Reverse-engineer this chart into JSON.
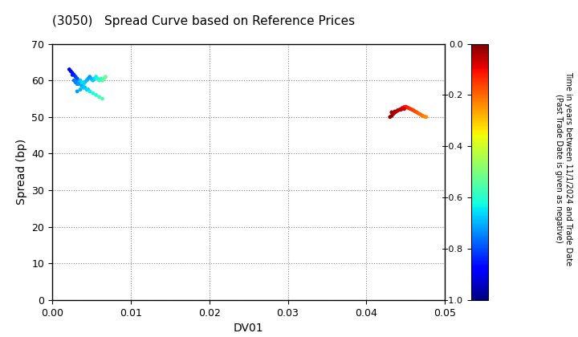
{
  "title": "(3050)   Spread Curve based on Reference Prices",
  "xlabel": "DV01",
  "ylabel": "Spread (bp)",
  "xlim": [
    0.0,
    0.05
  ],
  "ylim": [
    0,
    70
  ],
  "xticks": [
    0.0,
    0.01,
    0.02,
    0.03,
    0.04,
    0.05
  ],
  "yticks": [
    0,
    10,
    20,
    30,
    40,
    50,
    60,
    70
  ],
  "colorbar_label": "Time in years between 11/1/2024 and Trade Date\n(Past Trade Date is given as negative)",
  "clim": [
    -1.0,
    0.0
  ],
  "cticks": [
    0.0,
    -0.2,
    -0.4,
    -0.6,
    -0.8,
    -1.0
  ],
  "bg_color": "#f0f0f0",
  "cluster1_dv01": [
    0.0022,
    0.0024,
    0.0026,
    0.0028,
    0.003,
    0.0032,
    0.0034,
    0.0028,
    0.003,
    0.0032,
    0.0034,
    0.0036,
    0.0038,
    0.004,
    0.0038,
    0.004,
    0.0042,
    0.0044,
    0.0046,
    0.0048,
    0.005,
    0.0052,
    0.0054,
    0.0056,
    0.0058,
    0.006,
    0.0062,
    0.0064,
    0.0066,
    0.0068,
    0.0026,
    0.003,
    0.0034,
    0.0038,
    0.0042,
    0.0046,
    0.0032,
    0.0036,
    0.004,
    0.0044,
    0.0048,
    0.0052,
    0.0056,
    0.006,
    0.0064
  ],
  "cluster1_spread": [
    63.0,
    62.5,
    62.0,
    61.5,
    61.0,
    60.5,
    60.0,
    60.0,
    59.5,
    59.0,
    59.5,
    60.0,
    59.5,
    59.0,
    58.5,
    59.0,
    59.5,
    60.0,
    60.5,
    61.0,
    60.5,
    60.0,
    60.5,
    61.0,
    60.5,
    60.0,
    60.5,
    60.0,
    60.5,
    61.0,
    61.5,
    59.5,
    59.0,
    58.5,
    58.0,
    57.5,
    57.0,
    57.5,
    58.0,
    57.5,
    57.0,
    56.5,
    56.0,
    55.5,
    55.0
  ],
  "cluster1_color": [
    -0.9,
    -0.88,
    -0.86,
    -0.84,
    -0.82,
    -0.8,
    -0.78,
    -0.76,
    -0.74,
    -0.72,
    -0.7,
    -0.68,
    -0.66,
    -0.64,
    -0.62,
    -0.65,
    -0.67,
    -0.69,
    -0.71,
    -0.73,
    -0.7,
    -0.68,
    -0.66,
    -0.64,
    -0.62,
    -0.6,
    -0.58,
    -0.56,
    -0.54,
    -0.52,
    -0.85,
    -0.75,
    -0.73,
    -0.71,
    -0.69,
    -0.67,
    -0.72,
    -0.7,
    -0.68,
    -0.66,
    -0.64,
    -0.62,
    -0.6,
    -0.58,
    -0.56
  ],
  "cluster2_dv01": [
    0.043,
    0.0432,
    0.0434,
    0.0436,
    0.0438,
    0.044,
    0.0442,
    0.0444,
    0.0446,
    0.0448,
    0.045,
    0.0452,
    0.0454,
    0.0456,
    0.0458,
    0.046,
    0.0462,
    0.0464,
    0.0466,
    0.0468,
    0.047,
    0.0472,
    0.0474,
    0.0476,
    0.0432,
    0.0436,
    0.044,
    0.0444,
    0.0448
  ],
  "cluster2_spread": [
    50.0,
    50.3,
    50.8,
    51.2,
    51.5,
    51.8,
    52.0,
    52.2,
    52.5,
    52.7,
    52.8,
    52.6,
    52.4,
    52.2,
    52.0,
    51.8,
    51.5,
    51.3,
    51.0,
    50.8,
    50.5,
    50.3,
    50.1,
    50.0,
    51.3,
    51.5,
    51.8,
    52.0,
    52.2
  ],
  "cluster2_color": [
    -0.01,
    -0.02,
    -0.03,
    -0.04,
    -0.05,
    -0.06,
    -0.07,
    -0.08,
    -0.09,
    -0.1,
    -0.11,
    -0.12,
    -0.13,
    -0.14,
    -0.15,
    -0.16,
    -0.17,
    -0.18,
    -0.19,
    -0.2,
    -0.21,
    -0.22,
    -0.23,
    -0.24,
    -0.03,
    -0.04,
    -0.05,
    -0.06,
    -0.07
  ]
}
